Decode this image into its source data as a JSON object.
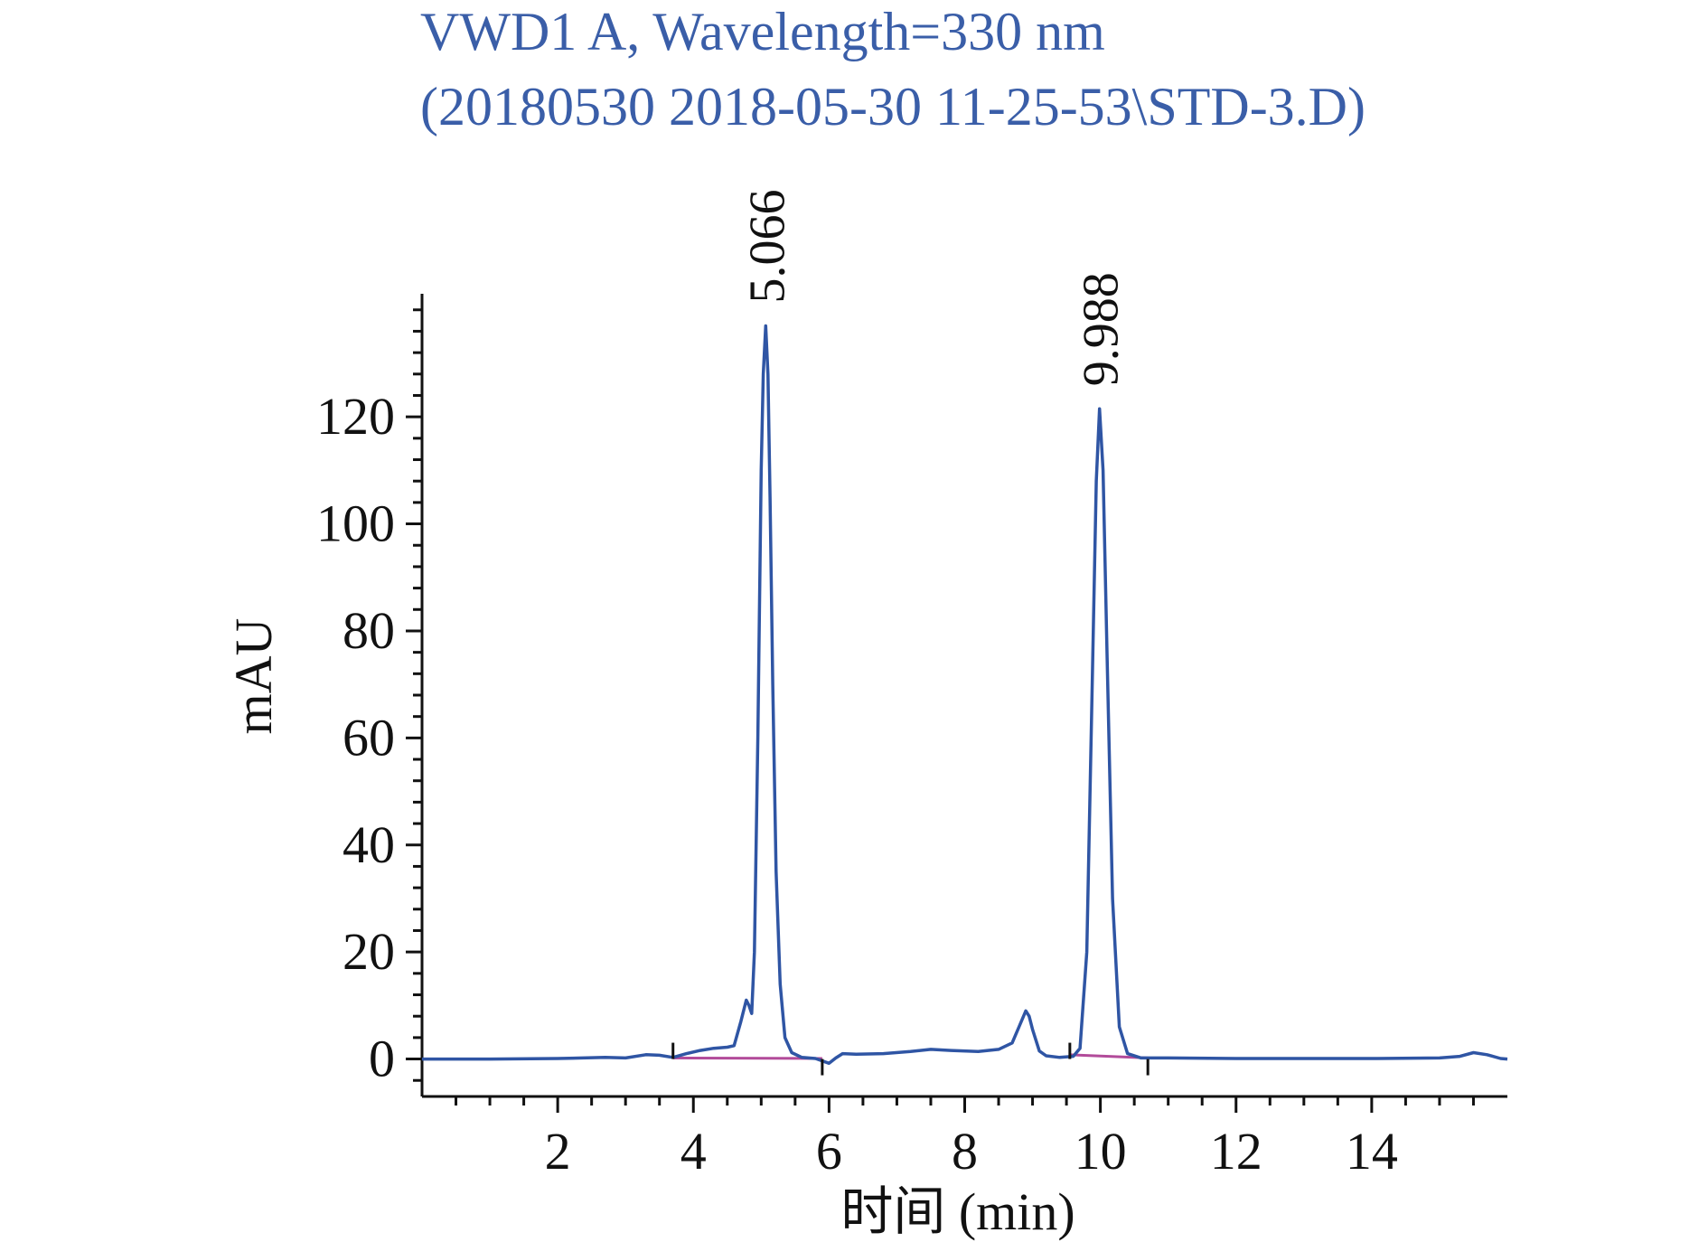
{
  "chart_data": {
    "type": "line",
    "title_line1": "VWD1 A, Wavelength=330 nm",
    "title_line2": "(20180530 2018-05-30 11-25-53\\STD-3.D)",
    "xlabel": "时间 (min)",
    "ylabel": "mAU",
    "xlim": [
      0,
      16
    ],
    "ylim": [
      -7,
      143
    ],
    "x_ticks": [
      2,
      4,
      6,
      8,
      10,
      12,
      14
    ],
    "y_ticks": [
      0,
      20,
      40,
      60,
      80,
      100,
      120
    ],
    "peaks": [
      {
        "label": "5.066",
        "rt": 5.066,
        "height": 137
      },
      {
        "label": "9.988",
        "rt": 9.988,
        "height": 121.5
      }
    ],
    "series": [
      {
        "color": "#2f55a4",
        "x": [
          0,
          1.0,
          2.0,
          2.7,
          3.0,
          3.3,
          3.5,
          3.7,
          3.9,
          4.1,
          4.3,
          4.5,
          4.6,
          4.7,
          4.78,
          4.82,
          4.86,
          4.9,
          4.95,
          5.0,
          5.03,
          5.066,
          5.1,
          5.13,
          5.17,
          5.22,
          5.28,
          5.35,
          5.45,
          5.6,
          5.8,
          6.0,
          6.1,
          6.2,
          6.4,
          6.8,
          7.2,
          7.5,
          7.8,
          8.2,
          8.5,
          8.7,
          8.8,
          8.9,
          8.95,
          9.0,
          9.1,
          9.2,
          9.4,
          9.6,
          9.7,
          9.8,
          9.88,
          9.94,
          9.988,
          10.04,
          10.1,
          10.18,
          10.28,
          10.4,
          10.6,
          11.0,
          12.0,
          13.0,
          14.0,
          15.0,
          15.3,
          15.5,
          15.7,
          15.9,
          16.0
        ],
        "y": [
          0,
          0,
          0.1,
          0.3,
          0.2,
          0.8,
          0.7,
          0.3,
          1.0,
          1.6,
          2.0,
          2.2,
          2.5,
          7.0,
          11.0,
          10.0,
          8.5,
          20.0,
          60.0,
          110.0,
          128.0,
          137.0,
          128.0,
          105.0,
          70.0,
          35.0,
          14.0,
          4.0,
          1.2,
          0.3,
          0.1,
          -0.8,
          0.2,
          1.0,
          0.9,
          1.0,
          1.4,
          1.8,
          1.6,
          1.4,
          1.8,
          3.0,
          6.0,
          9.0,
          8.0,
          5.5,
          1.5,
          0.6,
          0.3,
          0.5,
          2.0,
          20.0,
          70.0,
          108.0,
          121.5,
          110.0,
          75.0,
          30.0,
          6.0,
          1.0,
          0.2,
          0.2,
          0.1,
          0.1,
          0.1,
          0.2,
          0.5,
          1.2,
          0.8,
          0.1,
          0.0
        ]
      }
    ],
    "baselines": [
      {
        "color": "#b24b9a",
        "x1": 3.7,
        "y1": 0.2,
        "x2": 5.9,
        "y2": 0.1
      },
      {
        "color": "#b24b9a",
        "x1": 9.55,
        "y1": 0.8,
        "x2": 10.7,
        "y2": 0.2
      }
    ],
    "integration_markers": [
      3.7,
      5.9,
      9.55,
      10.7
    ]
  }
}
